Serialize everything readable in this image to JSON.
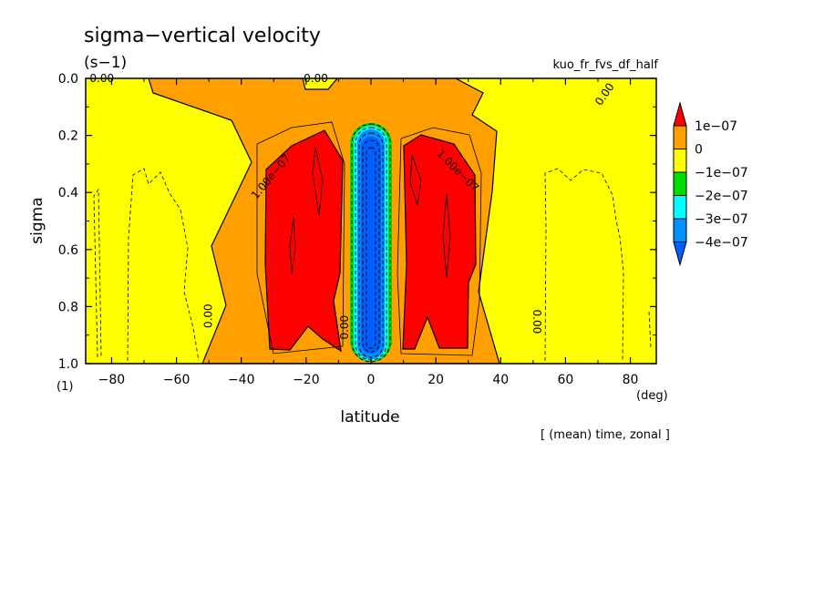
{
  "chart_data": {
    "type": "heatmap",
    "title": "sigma−vertical velocity",
    "units": "(s−1)",
    "run_label": "kuo_fr_fvs_df_half",
    "xlabel": "latitude",
    "xunits": "(deg)",
    "ylabel": "sigma",
    "yunits": "(1)",
    "footnote": "[ (mean) time, zonal ]",
    "xlim": [
      -88,
      88
    ],
    "ylim": [
      0.0,
      1.0
    ],
    "y_inverted": true,
    "x_ticks": [
      -80,
      -60,
      -40,
      -20,
      0,
      20,
      40,
      60,
      80
    ],
    "x_tick_labels": [
      "−80",
      "−60",
      "−40",
      "−20",
      "0",
      "20",
      "40",
      "60",
      "80"
    ],
    "y_ticks": [
      0.0,
      0.2,
      0.4,
      0.6,
      0.8,
      1.0
    ],
    "y_tick_labels": [
      "0.0",
      "0.2",
      "0.4",
      "0.6",
      "0.8",
      "1.0"
    ],
    "contour_labels": [
      {
        "text": "0.00",
        "x": -83,
        "y": 0.0
      },
      {
        "text": "0.00",
        "x": -17,
        "y": 0.0
      },
      {
        "text": "0.00",
        "x": 73,
        "y": 0.05
      },
      {
        "text": "1.00e−07",
        "x": -30,
        "y": 0.34
      },
      {
        "text": "1.00e−07",
        "x": 26,
        "y": 0.32
      },
      {
        "text": "0.00",
        "x": -49,
        "y": 0.82
      },
      {
        "text": "0.00",
        "x": 50,
        "y": 0.84
      },
      {
        "text": "0.00",
        "x": -7,
        "y": 0.86
      }
    ],
    "colorbar": {
      "levels": [
        "1e−07",
        "0",
        "−1e−07",
        "−2e−07",
        "−3e−07",
        "−4e−07"
      ],
      "colors": [
        "#ff0000",
        "#ffa000",
        "#ffff00",
        "#00dd00",
        "#00ffff",
        "#0090ff",
        "#0060ff"
      ]
    },
    "regions": [
      {
        "name": "background",
        "value_range": "-1e-07 to 0",
        "color": "#ffff00"
      },
      {
        "name": "positive",
        "value_range": "0 to 1e-07",
        "color": "#ffa000"
      },
      {
        "name": "strong positive",
        "value_range": "> 1e-07",
        "color": "#ff0000"
      },
      {
        "name": "equatorial negative",
        "value_range": "< -4e-07",
        "color": "#0060ff"
      }
    ]
  }
}
